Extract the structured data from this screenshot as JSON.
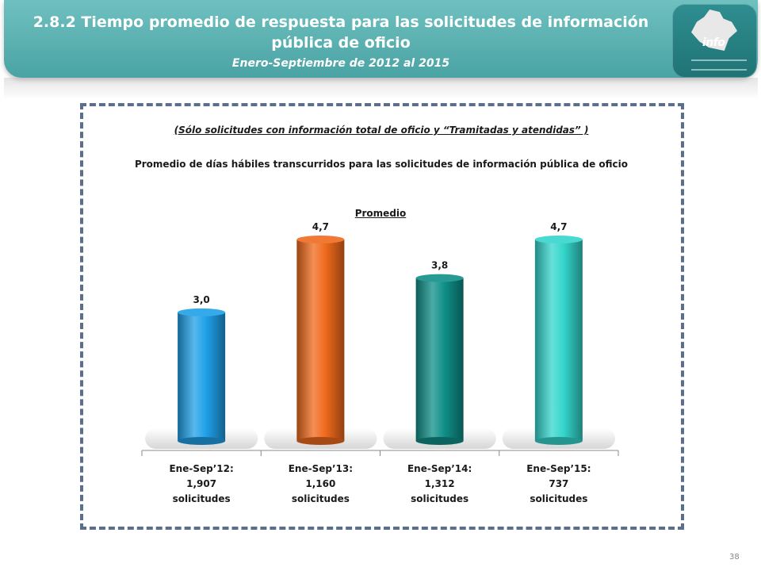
{
  "header": {
    "title_line1": "2.8.2 Tiempo promedio de respuesta para las solicitudes de información",
    "title_line2": "pública de oficio",
    "subtitle": "Enero-Septiembre de 2012 al 2015",
    "logo_text": "info"
  },
  "notes": {
    "scope": "(Sólo solicitudes con información total de oficio y “Tramitadas y atendidas” )",
    "description": "Promedio de días hábiles transcurridos para las solicitudes de información pública de oficio"
  },
  "chart_data": {
    "type": "bar",
    "series_title": "Promedio",
    "categories": [
      [
        "Ene-Sep’12:",
        "1,907",
        "solicitudes"
      ],
      [
        "Ene-Sep’13:",
        "1,160",
        "solicitudes"
      ],
      [
        "Ene-Sep’14:",
        "1,312",
        "solicitudes"
      ],
      [
        "Ene-Sep’15:",
        "737",
        "solicitudes"
      ]
    ],
    "values": [
      3.0,
      4.7,
      3.8,
      4.7
    ],
    "value_labels": [
      "3,0",
      "4,7",
      "3,8",
      "4,7"
    ],
    "colors": [
      "#1fa0e8",
      "#f06a1c",
      "#0f8f88",
      "#34d6cc"
    ],
    "ylim": [
      0,
      4.7
    ],
    "grid": false,
    "legend": "none"
  },
  "page_number": "38"
}
